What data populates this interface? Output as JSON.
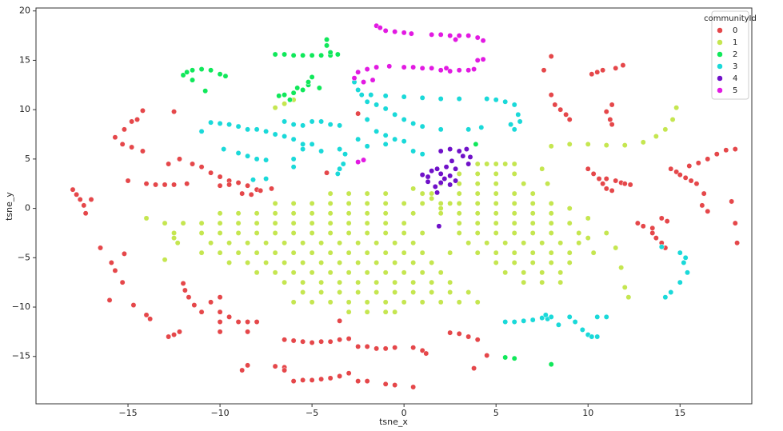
{
  "chart_data": {
    "type": "scatter",
    "x_label": "tsne_x",
    "y_label": "tsne_y",
    "xlim": [
      -20,
      18.9
    ],
    "ylim": [
      -19.8,
      20.3
    ],
    "xticks": [
      {
        "value": -15,
        "label": "−15"
      },
      {
        "value": -10,
        "label": "−10"
      },
      {
        "value": -5,
        "label": "−5"
      },
      0,
      5,
      10,
      15
    ],
    "yticks": [
      {
        "value": -15,
        "label": "−15"
      },
      {
        "value": -10,
        "label": "−10"
      },
      {
        "value": -5,
        "label": "−5"
      },
      0,
      5,
      10,
      15,
      20
    ],
    "legend_title": "communityId",
    "legend_position": "upper right",
    "series": [
      {
        "name": "0",
        "color": "#e5474a",
        "x": [
          -18,
          -17.8,
          -17.6,
          -17.4,
          -17.3,
          -17,
          -14.2,
          -14.5,
          -14.8,
          -15.2,
          -15.7,
          -15.3,
          -14.8,
          -14.2,
          -12.5,
          -12.8,
          -12.2,
          -11.5,
          -11,
          -10.5,
          -10,
          -9.5,
          -9,
          -8.5,
          -8,
          -8.3,
          -8.8,
          -7.8,
          -14,
          -13.5,
          -13,
          -12.5,
          -11.8,
          -10,
          -9.5,
          -15,
          -16.5,
          -15.9,
          -15.7,
          -15.3,
          -15.2,
          -16,
          -14.7,
          -14,
          -13.8,
          -12.8,
          -12.5,
          -12.2,
          -12,
          -11.9,
          -11.7,
          -11.4,
          -11,
          -10.5,
          -10,
          -10,
          -10,
          -10,
          -9.5,
          -9,
          -8.5,
          -8,
          -8.5,
          -6.5,
          -6,
          -5.5,
          -5,
          -4.5,
          -4,
          -3.5,
          -3,
          -2.5,
          -2,
          -1.5,
          -1,
          -0.5,
          0.5,
          1,
          1.2,
          -8.8,
          -8.5,
          -7,
          -6.5,
          -6.5,
          -6,
          -5.5,
          -5,
          -4.5,
          -4,
          -3.5,
          -3,
          -2.5,
          -2,
          -1,
          -0.5,
          0.5,
          2.5,
          3,
          3.5,
          4,
          4.5,
          3.8,
          8,
          7.6,
          8,
          8.2,
          8.5,
          8.8,
          9,
          10.2,
          10.5,
          10.8,
          11.5,
          11.9,
          11.3,
          11,
          11.2,
          11.3,
          10,
          10.3,
          10.6,
          10.8,
          11,
          11.3,
          11.5,
          11.8,
          12,
          12.3,
          11,
          12.7,
          13,
          13.5,
          14,
          14.3,
          13.5,
          13.7,
          14,
          14.2,
          14.5,
          14.8,
          15,
          15.3,
          15.6,
          15.9,
          16.3,
          16.2,
          16.5,
          15.5,
          16,
          16.5,
          17,
          17.5,
          18,
          17.8,
          18,
          18.1,
          -4.2,
          -3.5,
          -2.5,
          -7.2
        ],
        "values": [
          1.9,
          1.4,
          0.9,
          0.3,
          -0.5,
          0.9,
          9.9,
          9,
          8.8,
          8,
          7.2,
          6.5,
          6.2,
          5.8,
          9.8,
          4.5,
          5,
          4.5,
          4.2,
          3.6,
          3.2,
          2.8,
          2.6,
          2.3,
          1.9,
          1.4,
          1.5,
          1.8,
          2.5,
          2.4,
          2.4,
          2.4,
          2.5,
          2.3,
          2.4,
          2.8,
          -4,
          -5.5,
          -6.3,
          -7.5,
          -4.6,
          -9.3,
          -9.8,
          -10.8,
          -11.2,
          -13,
          -12.8,
          -12.5,
          -7.6,
          -8.3,
          -9,
          -9.8,
          -10.5,
          -9.5,
          -9,
          -10.5,
          -11.5,
          -12.5,
          -11,
          -11.5,
          -11.5,
          -11.5,
          -12.5,
          -13.3,
          -13.4,
          -13.5,
          -13.6,
          -13.5,
          -13.5,
          -13.3,
          -13.2,
          -14,
          -14,
          -14.2,
          -14.2,
          -14.1,
          -14.1,
          -14.4,
          -14.7,
          -16.4,
          -15.9,
          -16,
          -16.1,
          -16.4,
          -17.5,
          -17.4,
          -17.4,
          -17.3,
          -17.2,
          -17,
          -16.7,
          -17.5,
          -17.5,
          -17.8,
          -17.9,
          -18.1,
          -12.6,
          -12.7,
          -13,
          -13.3,
          -14.9,
          -16.2,
          15.4,
          14,
          11.5,
          10.5,
          10,
          9.5,
          9,
          13.6,
          13.8,
          14,
          14.2,
          14.5,
          10.5,
          9.8,
          9,
          8.5,
          4,
          3.5,
          3,
          2.5,
          2,
          1.8,
          2.8,
          2.6,
          2.5,
          2.4,
          3,
          -1.5,
          -1.8,
          -2,
          -1,
          -1.3,
          -2.5,
          -3,
          -3.5,
          -4,
          4,
          3.7,
          3.4,
          3.1,
          2.8,
          2.5,
          1.5,
          0.3,
          -0.3,
          4.3,
          4.6,
          5,
          5.5,
          5.9,
          6,
          0.7,
          -1.5,
          -3.5,
          3.6,
          -11.4,
          9.6,
          2
        ]
      },
      {
        "name": "1",
        "color": "#c5e650",
        "x": [
          -4,
          -3,
          -2,
          -1,
          -7,
          -6,
          -5,
          -4,
          -3,
          -2,
          -1,
          0,
          -10,
          -9,
          -8,
          -7,
          -6,
          -5,
          -4,
          -3,
          -2,
          -1,
          0.5,
          -13,
          -12,
          -11,
          -10,
          -9,
          -8,
          -7,
          -6,
          -5,
          -4,
          -3,
          -2,
          -1,
          0,
          -12.5,
          -11,
          -10,
          -9,
          -8,
          -7,
          -6,
          -5,
          -4,
          -3,
          -2,
          -1,
          0,
          1,
          -12.3,
          -10.5,
          -9.5,
          -8.5,
          -7.5,
          -6.5,
          -5.5,
          -4.5,
          -3.5,
          -2.5,
          -1.5,
          -0.5,
          0.5,
          -11,
          -10,
          -9,
          -8,
          -7,
          -6,
          -5,
          -4,
          -3,
          -2,
          -1,
          0,
          1,
          -9.5,
          -8.5,
          -7.5,
          -6.5,
          -5.5,
          -4.5,
          -3.5,
          -2.5,
          -1.5,
          -0.5,
          0.5,
          1.5,
          -8,
          -7,
          -6,
          -5,
          -4,
          -3,
          -2,
          -1,
          0,
          1,
          2,
          -6.5,
          -5.5,
          -4.5,
          -3.5,
          -2.5,
          -1.5,
          -0.5,
          0.5,
          1.5,
          2.5,
          -5.5,
          -4.5,
          -3.5,
          -2.5,
          -1.5,
          -0.5,
          0.5,
          1.5,
          2.5,
          3.5,
          -6,
          -5,
          -4,
          -3,
          -2,
          -1,
          0,
          1,
          2,
          3,
          4,
          -3,
          -2,
          -1,
          -0.5,
          4,
          4.5,
          5,
          5.5,
          6,
          3,
          4,
          5,
          6,
          2,
          3,
          4,
          5,
          6.5,
          1.5,
          3,
          4,
          5,
          6,
          7,
          1,
          2,
          3,
          4,
          5,
          6,
          7,
          8,
          0.5,
          2,
          3,
          4,
          5,
          6,
          7,
          8,
          3,
          4,
          5,
          6,
          7,
          8,
          9,
          3,
          4,
          5,
          6,
          7,
          8,
          9.5,
          3.5,
          4.5,
          5.5,
          6.5,
          7.5,
          8.5,
          9.5,
          2.5,
          4,
          5,
          6,
          7,
          8,
          9,
          5,
          6,
          7,
          8,
          9,
          5.5,
          6.5,
          7.5,
          8.5,
          6.5,
          7.5,
          8.5,
          0.5,
          1,
          1.5,
          2,
          2.5,
          8,
          9,
          10,
          11,
          12,
          13,
          13.7,
          14.2,
          14.6,
          14.8,
          7.5,
          7.8,
          9,
          10,
          11,
          11.5,
          11.8,
          12,
          12.2,
          10,
          10.3,
          -7,
          -6.5,
          -6,
          -13,
          -12.5,
          -14
        ],
        "values": [
          1.5,
          1.5,
          1.5,
          1.5,
          0.5,
          0.5,
          0.5,
          0.5,
          0.5,
          0.5,
          0.5,
          0.5,
          -0.5,
          -0.5,
          -0.5,
          -0.5,
          -0.5,
          -0.5,
          -0.5,
          -0.5,
          -0.5,
          -0.5,
          -0.5,
          -1.5,
          -1.5,
          -1.5,
          -1.5,
          -1.5,
          -1.5,
          -1.5,
          -1.5,
          -1.5,
          -1.5,
          -1.5,
          -1.5,
          -1.5,
          -1.5,
          -2.5,
          -2.5,
          -2.5,
          -2.5,
          -2.5,
          -2.5,
          -2.5,
          -2.5,
          -2.5,
          -2.5,
          -2.5,
          -2.5,
          -2.5,
          -2.5,
          -3.5,
          -3.5,
          -3.5,
          -3.5,
          -3.5,
          -3.5,
          -3.5,
          -3.5,
          -3.5,
          -3.5,
          -3.5,
          -3.5,
          -3.5,
          -4.5,
          -4.5,
          -4.5,
          -4.5,
          -4.5,
          -4.5,
          -4.5,
          -4.5,
          -4.5,
          -4.5,
          -4.5,
          -4.5,
          -4.5,
          -5.5,
          -5.5,
          -5.5,
          -5.5,
          -5.5,
          -5.5,
          -5.5,
          -5.5,
          -5.5,
          -5.5,
          -5.5,
          -5.5,
          -6.5,
          -6.5,
          -6.5,
          -6.5,
          -6.5,
          -6.5,
          -6.5,
          -6.5,
          -6.5,
          -6.5,
          -6.5,
          -7.5,
          -7.5,
          -7.5,
          -7.5,
          -7.5,
          -7.5,
          -7.5,
          -7.5,
          -7.5,
          -7.5,
          -8.5,
          -8.5,
          -8.5,
          -8.5,
          -8.5,
          -8.5,
          -8.5,
          -8.5,
          -8.5,
          -8.5,
          -9.5,
          -9.5,
          -9.5,
          -9.5,
          -9.5,
          -9.5,
          -9.5,
          -9.5,
          -9.5,
          -9.5,
          -9.5,
          -10.5,
          -10.5,
          -10.5,
          -10.5,
          4.5,
          4.5,
          4.5,
          4.5,
          4.5,
          3.5,
          3.5,
          3.5,
          3.5,
          2.5,
          2.5,
          2.5,
          2.5,
          2.5,
          1.5,
          1.5,
          1.5,
          1.5,
          1.5,
          1.5,
          0.5,
          0.5,
          0.5,
          0.5,
          0.5,
          0.5,
          0.5,
          0.5,
          -0.5,
          -0.5,
          -0.5,
          -0.5,
          -0.5,
          -0.5,
          -0.5,
          -0.5,
          -1.5,
          -1.5,
          -1.5,
          -1.5,
          -1.5,
          -1.5,
          -1.5,
          -2.5,
          -2.5,
          -2.5,
          -2.5,
          -2.5,
          -2.5,
          -2.5,
          -3.5,
          -3.5,
          -3.5,
          -3.5,
          -3.5,
          -3.5,
          -3.5,
          -4.5,
          -4.5,
          -4.5,
          -4.5,
          -4.5,
          -4.5,
          -4.5,
          -5.5,
          -5.5,
          -5.5,
          -5.5,
          -5.5,
          -6.5,
          -6.5,
          -6.5,
          -6.5,
          -7.5,
          -7.5,
          -7.5,
          2,
          1.5,
          1,
          0,
          0.5,
          6.3,
          6.5,
          6.5,
          6.4,
          6.4,
          6.7,
          7.3,
          8,
          9,
          10.2,
          4,
          2.5,
          0,
          -1,
          -2.5,
          -4,
          -6,
          -8,
          -9,
          -3,
          -4.5,
          10.2,
          10.6,
          11,
          -5.2,
          -3,
          -1
        ]
      },
      {
        "name": "2",
        "color": "#10e85a",
        "x": [
          -12,
          -11.8,
          -11.5,
          -11,
          -10.5,
          -10,
          -9.7,
          -11.5,
          -10.8,
          -7,
          -6.5,
          -6,
          -5.5,
          -5,
          -4.5,
          -4,
          -3.6,
          -4,
          -4.2,
          -4.2,
          -6.8,
          -6.5,
          -6,
          -5.8,
          -5.5,
          -5.2,
          -5,
          -5.2,
          -6.2,
          -4.6,
          3.9,
          5.5,
          6,
          8
        ],
        "values": [
          13.5,
          13.8,
          14,
          14.1,
          14,
          13.6,
          13.4,
          13,
          11.9,
          15.6,
          15.6,
          15.5,
          15.5,
          15.5,
          15.5,
          15.5,
          15.6,
          15.8,
          17.1,
          16.5,
          11.4,
          11.5,
          11.7,
          12.2,
          12,
          12.5,
          13.3,
          12.8,
          11,
          12.2,
          6.5,
          -15.1,
          -15.2,
          -15.8
        ]
      },
      {
        "name": "3",
        "color": "#1ad9d9",
        "x": [
          -11,
          -10.5,
          -10,
          -9.5,
          -9,
          -8.5,
          -8,
          -7.5,
          -7,
          -6.5,
          -9.8,
          -9,
          -8.5,
          -8,
          -7.5,
          -8.2,
          -7.5,
          -6.5,
          -6,
          -5.5,
          -5,
          -4.5,
          -4,
          -3.5,
          -6,
          -5.5,
          -5,
          -4.5,
          -6,
          -6,
          -5.5,
          -3.5,
          -3.2,
          -3.3,
          -3.5,
          -3.6,
          -2.7,
          -2.5,
          -2.3,
          -2,
          -1.5,
          -1,
          -0.5,
          0,
          0.5,
          1,
          0,
          -1,
          -1.8,
          1,
          2,
          3,
          -2,
          -1.5,
          -1,
          -0.5,
          0,
          -2.5,
          -2,
          -1,
          0.5,
          1,
          2,
          3.5,
          4.2,
          4.5,
          5,
          5.5,
          6,
          6.2,
          5.8,
          6,
          6.3,
          15,
          15.3,
          15.2,
          15.4,
          15,
          14.5,
          14.2,
          14,
          5.5,
          6,
          6.5,
          7,
          7.5,
          7.8,
          8,
          8.4,
          9,
          9.3,
          9.7,
          10,
          10.2,
          10.5,
          10.5,
          11,
          7.7
        ],
        "values": [
          7.8,
          8.7,
          8.6,
          8.5,
          8.3,
          8,
          8,
          7.8,
          7.5,
          7.3,
          6,
          5.6,
          5.3,
          5,
          4.9,
          2.9,
          3,
          8.8,
          8.5,
          8.4,
          8.8,
          8.8,
          8.5,
          8.4,
          7,
          6.5,
          6.5,
          5.8,
          5,
          4.2,
          6,
          6,
          5.5,
          4.5,
          4,
          3.5,
          12.8,
          12,
          11.5,
          10.8,
          10.5,
          10.1,
          9.5,
          9,
          8.6,
          8.3,
          11.3,
          11.4,
          11.5,
          11.2,
          11.1,
          11.1,
          9,
          7.8,
          7.4,
          7,
          6.8,
          7,
          6.3,
          6.5,
          5.8,
          5.5,
          8,
          8,
          8.2,
          11.1,
          11,
          10.8,
          10.5,
          9.5,
          8.5,
          8,
          8.8,
          -4.5,
          -5,
          -5.5,
          -6.5,
          -7.5,
          -8.5,
          -9,
          -3.9,
          -11.5,
          -11.5,
          -11.4,
          -11.3,
          -11.1,
          -11.2,
          -11,
          -11.8,
          -11,
          -11.5,
          -12.3,
          -12.8,
          -13,
          -13,
          -11,
          -11,
          -10.8
        ]
      },
      {
        "name": "4",
        "color": "#7011c9",
        "x": [
          1,
          1.3,
          1.5,
          1.8,
          2,
          2.2,
          2.5,
          2.3,
          2,
          1.7,
          2.5,
          1.3,
          2.8,
          2.6,
          2,
          2.5,
          3,
          3.4,
          3.2,
          3.6,
          1.8,
          1.9,
          3.5,
          2.8
        ],
        "values": [
          3.4,
          3.2,
          3.8,
          4,
          3.5,
          3,
          3.3,
          4.2,
          2.6,
          2.2,
          2.4,
          2.7,
          4,
          4.8,
          5.8,
          6,
          5.8,
          6,
          5.3,
          5.2,
          1.6,
          -1.8,
          4.5,
          2.8
        ]
      },
      {
        "name": "5",
        "color": "#e21ae2",
        "x": [
          -1.5,
          -1.3,
          -1,
          -0.5,
          0,
          0.4,
          1.5,
          2,
          2.5,
          2.8,
          3,
          3.5,
          4,
          4.3,
          -2.7,
          -2.5,
          -2,
          -1.5,
          -0.8,
          -2.2,
          -1.7,
          0,
          0.5,
          1,
          1.5,
          2,
          2.3,
          2.5,
          3,
          3.5,
          3.8,
          4,
          4.3,
          -2.5,
          -2.2
        ],
        "values": [
          18.5,
          18.3,
          18,
          17.9,
          17.8,
          17.7,
          17.6,
          17.6,
          17.5,
          17.1,
          17.5,
          17.5,
          17.3,
          17,
          13.2,
          13.8,
          14.1,
          14.3,
          14.4,
          12.8,
          13,
          14.3,
          14.3,
          14.2,
          14.2,
          14,
          14.2,
          13.9,
          14,
          14,
          14.1,
          15,
          15.1,
          4.7,
          4.9
        ]
      }
    ]
  }
}
